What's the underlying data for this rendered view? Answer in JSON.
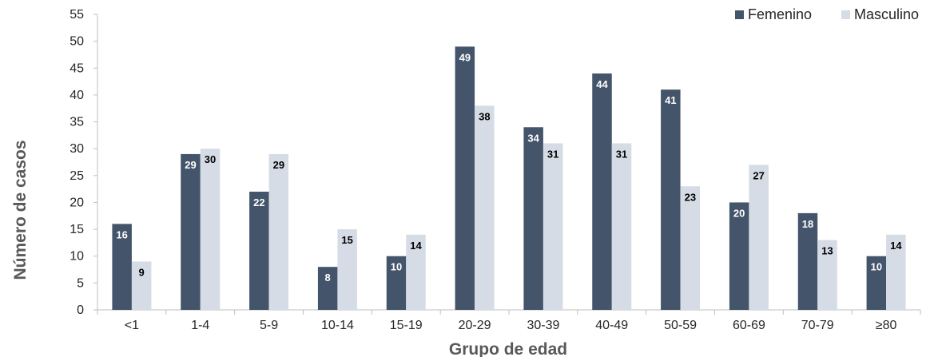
{
  "chart_data": {
    "type": "bar",
    "xlabel": "Grupo de edad",
    "ylabel": "Número de casos",
    "ylim": [
      0,
      55
    ],
    "yticks": [
      0,
      5,
      10,
      15,
      20,
      25,
      30,
      35,
      40,
      45,
      50,
      55
    ],
    "grid": false,
    "legend_position": "top-right",
    "categories": [
      "<1",
      "1-4",
      "5-9",
      "10-14",
      "15-19",
      "20-29",
      "30-39",
      "40-49",
      "50-59",
      "60-69",
      "70-79",
      "≥80"
    ],
    "series": [
      {
        "name": "Femenino",
        "color": "#44546a",
        "label_color": "#ffffff",
        "values": [
          16,
          29,
          22,
          8,
          10,
          49,
          34,
          44,
          41,
          20,
          18,
          10
        ]
      },
      {
        "name": "Masculino",
        "color": "#d6dce5",
        "label_color": "#000000",
        "values": [
          9,
          30,
          29,
          15,
          14,
          38,
          31,
          31,
          23,
          27,
          13,
          14
        ]
      }
    ]
  }
}
